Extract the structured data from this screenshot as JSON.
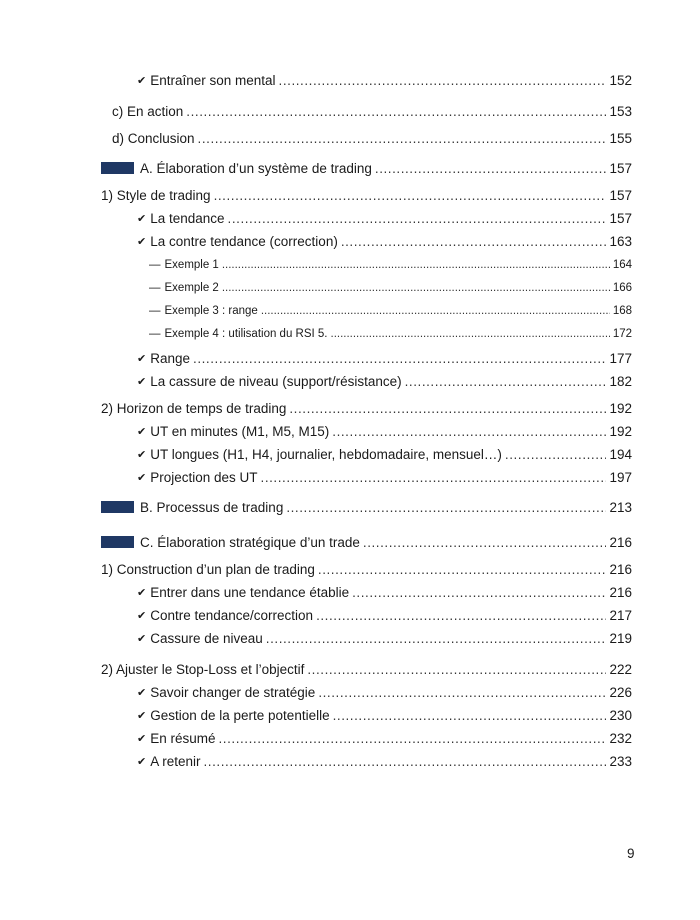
{
  "colors": {
    "section_marker": "#1f3864"
  },
  "entries": [
    {
      "type": "check",
      "text": "Entraîner son mental",
      "page": "152"
    },
    {
      "type": "sub",
      "text": "c) En action",
      "page": "153"
    },
    {
      "type": "sub",
      "text": "d) Conclusion",
      "page": "155"
    },
    {
      "type": "section",
      "text": "A. Élaboration d’un système de trading",
      "page": "157"
    },
    {
      "type": "part",
      "text": "1) Style de trading",
      "page": "157"
    },
    {
      "type": "check",
      "text": "La tendance",
      "page": "157"
    },
    {
      "type": "check",
      "text": "La contre tendance (correction)",
      "page": "163"
    },
    {
      "type": "dash",
      "text": "Exemple 1",
      "page": "164"
    },
    {
      "type": "dash",
      "text": "Exemple 2",
      "page": "166"
    },
    {
      "type": "dash",
      "text": "Exemple 3 : range",
      "page": "168"
    },
    {
      "type": "dash",
      "text": "Exemple 4 : utilisation du RSI 5.",
      "page": "172"
    },
    {
      "type": "check",
      "text": "Range",
      "page": "177"
    },
    {
      "type": "check",
      "text": "La cassure de niveau (support/résistance)",
      "page": "182"
    },
    {
      "type": "part",
      "text": "2) Horizon de temps de trading",
      "page": "192"
    },
    {
      "type": "check",
      "text": "UT en minutes (M1, M5, M15)",
      "page": "192"
    },
    {
      "type": "check",
      "text": "UT longues (H1, H4, journalier, hebdomadaire, mensuel…)",
      "page": "194"
    },
    {
      "type": "check",
      "text": "Projection des UT",
      "page": "197"
    },
    {
      "type": "section",
      "text": "B. Processus de trading",
      "page": "213"
    },
    {
      "type": "section",
      "text": "C. Élaboration stratégique d’un trade",
      "page": "216"
    },
    {
      "type": "part",
      "text": "1) Construction d’un plan de trading",
      "page": "216"
    },
    {
      "type": "check",
      "text": "Entrer dans une tendance établie",
      "page": "216"
    },
    {
      "type": "check",
      "text": "Contre tendance/correction",
      "page": "217"
    },
    {
      "type": "check",
      "text": "Cassure de niveau",
      "page": "219"
    },
    {
      "type": "part",
      "text": "2) Ajuster le Stop-Loss et l’objectif",
      "page": "222"
    },
    {
      "type": "check",
      "text": "Savoir changer de stratégie",
      "page": "226"
    },
    {
      "type": "check",
      "text": "Gestion de la perte potentielle",
      "page": "230"
    },
    {
      "type": "check",
      "text": "En résumé",
      "page": "232"
    },
    {
      "type": "check",
      "text": "A retenir",
      "page": "233"
    }
  ],
  "page_number": "9"
}
